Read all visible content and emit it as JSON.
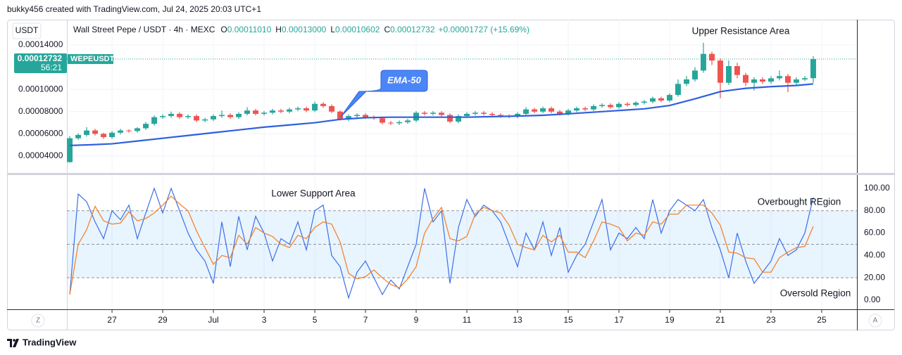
{
  "header": {
    "attribution": "bukky456 created with TradingView.com, Jul 24, 2025 20:03 UTC+1"
  },
  "footer": {
    "brand": "TradingView"
  },
  "scale_buttons": {
    "left": "Z",
    "right": "A"
  },
  "chart_data": [
    {
      "type": "candlestick",
      "currency": "USDT",
      "title": "Wall Street Pepe / USDT · 4h · MEXC",
      "ohlc_legend": [
        {
          "prefix": "O",
          "value": "0.00011010"
        },
        {
          "prefix": "H",
          "value": "0.00013000"
        },
        {
          "prefix": "L",
          "value": "0.00010602"
        },
        {
          "prefix": "C",
          "value": "0.00012732"
        }
      ],
      "change": "+0.00001727 (+15.69%)",
      "annotations": [
        "Upper Resistance Area"
      ],
      "last_price": {
        "value": 0.00012732,
        "label": "0.00012732",
        "symbol": "WEPEUSDT",
        "countdown": "56:21"
      },
      "colors": {
        "up": "#26a69a",
        "down": "#ef5350"
      },
      "grid": "both",
      "xlim": [
        25.22,
        56.39
      ],
      "ylim": [
        2.54e-05,
        0.0001628
      ],
      "yticks": [
        {
          "value": 4e-05,
          "label": "0.00004000"
        },
        {
          "value": 6e-05,
          "label": "0.00006000"
        },
        {
          "value": 8e-05,
          "label": "0.00008000"
        },
        {
          "value": 0.0001,
          "label": "0.00010000"
        },
        {
          "value": 0.00014,
          "label": "0.00014000"
        }
      ],
      "x": [
        25.333,
        25.667,
        26,
        26.333,
        26.667,
        27,
        27.333,
        27.667,
        28,
        28.333,
        28.667,
        29,
        29.333,
        29.667,
        30,
        30.333,
        30.667,
        31,
        31.333,
        31.667,
        32,
        32.333,
        32.667,
        33,
        33.333,
        33.667,
        34,
        34.333,
        34.667,
        35,
        35.333,
        35.667,
        36,
        36.333,
        36.667,
        37,
        37.333,
        37.667,
        38,
        38.333,
        38.667,
        39,
        39.333,
        39.667,
        40,
        40.333,
        40.667,
        41,
        41.333,
        41.667,
        42,
        42.333,
        42.667,
        43,
        43.333,
        43.667,
        44,
        44.333,
        44.667,
        45,
        45.333,
        45.667,
        46,
        46.333,
        46.667,
        47,
        47.333,
        47.667,
        48,
        48.333,
        48.667,
        49,
        49.333,
        49.667,
        50,
        50.333,
        50.667,
        51,
        51.333,
        51.667,
        52,
        52.333,
        52.667,
        53,
        53.333,
        53.667,
        54,
        54.333,
        54.667
      ],
      "open": [
        3.45e-05,
        5.6e-05,
        5.9e-05,
        6.3e-05,
        6e-05,
        5.7e-05,
        6.1e-05,
        6.3e-05,
        6.25e-05,
        6.5e-05,
        6.9e-05,
        7.5e-05,
        7.6e-05,
        7.8e-05,
        7.5e-05,
        7.6e-05,
        7.2e-05,
        7.3e-05,
        7.6e-05,
        7.7e-05,
        7.5e-05,
        7.8e-05,
        8.1e-05,
        7.8e-05,
        7.9e-05,
        8.1e-05,
        8e-05,
        8.2e-05,
        8.3e-05,
        8.1e-05,
        8.7e-05,
        8.5e-05,
        8e-05,
        7.3e-05,
        7.6e-05,
        7.7e-05,
        7.5e-05,
        7.4e-05,
        7e-05,
        6.95e-05,
        7.05e-05,
        7.2e-05,
        7.9e-05,
        7.8e-05,
        7.9e-05,
        7.7e-05,
        7.1e-05,
        7.6e-05,
        7.8e-05,
        7.9e-05,
        7.8e-05,
        7.7e-05,
        7.6e-05,
        7.55e-05,
        7.8e-05,
        8.2e-05,
        8e-05,
        8.3e-05,
        8e-05,
        7.8e-05,
        8.1e-05,
        8.3e-05,
        8.2e-05,
        8.5e-05,
        8.6e-05,
        8.4e-05,
        8.7e-05,
        8.6e-05,
        8.8e-05,
        8.9e-05,
        9.2e-05,
        9e-05,
        9.5e-05,
        0.000105,
        0.000109,
        0.000117,
        0.000132,
        0.000126,
        0.000106,
        0.000121,
        0.000113,
        0.000106,
        0.000109,
        0.000107,
        0.00011,
        0.000112,
        0.000106,
        0.000109,
        0.0001101
      ],
      "high": [
        5.8e-05,
        6.05e-05,
        6.6e-05,
        6.45e-05,
        6.1e-05,
        6.25e-05,
        6.45e-05,
        6.4e-05,
        6.6e-05,
        7.05e-05,
        7.65e-05,
        7.75e-05,
        8e-05,
        7.95e-05,
        7.75e-05,
        7.75e-05,
        7.45e-05,
        7.75e-05,
        8.1e-05,
        7.85e-05,
        7.95e-05,
        8.4e-05,
        8.25e-05,
        8.05e-05,
        8.25e-05,
        8.25e-05,
        8.35e-05,
        8.45e-05,
        8.45e-05,
        8.9e-05,
        8.85e-05,
        8.65e-05,
        8.1e-05,
        7.75e-05,
        7.85e-05,
        7.85e-05,
        7.65e-05,
        7.55e-05,
        7.15e-05,
        7.2e-05,
        7.35e-05,
        8.05e-05,
        8.05e-05,
        8.05e-05,
        8.05e-05,
        7.85e-05,
        7.75e-05,
        7.95e-05,
        8.05e-05,
        8.05e-05,
        7.95e-05,
        7.85e-05,
        7.75e-05,
        7.95e-05,
        8.4e-05,
        8.35e-05,
        8.45e-05,
        8.45e-05,
        8.15e-05,
        8.25e-05,
        8.45e-05,
        8.45e-05,
        8.65e-05,
        8.75e-05,
        8.75e-05,
        8.85e-05,
        8.85e-05,
        8.95e-05,
        9.05e-05,
        9.35e-05,
        9.35e-05,
        9.65e-05,
        0.000109,
        0.000112,
        0.00012,
        0.000142,
        0.000134,
        0.000128,
        0.000126,
        0.000124,
        0.000115,
        0.000111,
        0.000111,
        0.000112,
        0.000117,
        0.000114,
        0.000111,
        0.000112,
        0.00013
      ],
      "low": [
        3.4e-05,
        5.45e-05,
        5.75e-05,
        5.85e-05,
        5.55e-05,
        5.55e-05,
        5.95e-05,
        6.1e-05,
        6.1e-05,
        6.35e-05,
        6.75e-05,
        7.35e-05,
        7.45e-05,
        7.35e-05,
        7.35e-05,
        7.05e-05,
        7.05e-05,
        7.15e-05,
        7.45e-05,
        7.35e-05,
        7.35e-05,
        7.65e-05,
        7.65e-05,
        7.65e-05,
        7.75e-05,
        7.85e-05,
        7.85e-05,
        8.05e-05,
        7.95e-05,
        7.95e-05,
        8.35e-05,
        7.85e-05,
        7.2e-05,
        7.15e-05,
        7.45e-05,
        7.35e-05,
        7.25e-05,
        6.85e-05,
        6.8e-05,
        6.8e-05,
        6.9e-05,
        7.05e-05,
        7.65e-05,
        7.65e-05,
        7.55e-05,
        6.95e-05,
        6.95e-05,
        7.45e-05,
        7.65e-05,
        7.65e-05,
        7.55e-05,
        7.45e-05,
        7.4e-05,
        7.4e-05,
        7.65e-05,
        7.85e-05,
        7.85e-05,
        7.85e-05,
        7.65e-05,
        7.65e-05,
        7.95e-05,
        8.05e-05,
        8.05e-05,
        8.35e-05,
        8.25e-05,
        8.25e-05,
        8.45e-05,
        8.45e-05,
        8.65e-05,
        8.75e-05,
        8.85e-05,
        8.85e-05,
        9.35e-05,
        0.000103,
        0.000107,
        0.000115,
        0.000122,
        9.2e-05,
        0.000104,
        0.00011,
        0.000103,
        9.9e-05,
        0.000105,
        0.000105,
        0.000108,
        9.75e-05,
        0.000104,
        0.0001075,
        0.00010602
      ],
      "close": [
        5.6e-05,
        5.9e-05,
        6.3e-05,
        6e-05,
        5.7e-05,
        6.1e-05,
        6.3e-05,
        6.25e-05,
        6.5e-05,
        6.9e-05,
        7.5e-05,
        7.6e-05,
        7.8e-05,
        7.5e-05,
        7.6e-05,
        7.2e-05,
        7.3e-05,
        7.6e-05,
        7.7e-05,
        7.5e-05,
        7.8e-05,
        8.1e-05,
        7.8e-05,
        7.9e-05,
        8.1e-05,
        8e-05,
        8.2e-05,
        8.3e-05,
        8.1e-05,
        8.7e-05,
        8.5e-05,
        8e-05,
        7.3e-05,
        7.6e-05,
        7.7e-05,
        7.5e-05,
        7.4e-05,
        7e-05,
        6.95e-05,
        7.05e-05,
        7.2e-05,
        7.9e-05,
        7.8e-05,
        7.9e-05,
        7.7e-05,
        7.1e-05,
        7.6e-05,
        7.8e-05,
        7.9e-05,
        7.8e-05,
        7.7e-05,
        7.6e-05,
        7.55e-05,
        7.8e-05,
        8.2e-05,
        8e-05,
        8.3e-05,
        8e-05,
        7.8e-05,
        8.1e-05,
        8.3e-05,
        8.2e-05,
        8.5e-05,
        8.6e-05,
        8.4e-05,
        8.7e-05,
        8.6e-05,
        8.8e-05,
        8.9e-05,
        9.2e-05,
        9e-05,
        9.5e-05,
        0.000105,
        0.000109,
        0.000117,
        0.000132,
        0.000126,
        0.000106,
        0.000121,
        0.000113,
        0.000106,
        0.000109,
        0.000107,
        0.00011,
        0.000112,
        0.000106,
        0.000109,
        0.0001101,
        0.00012732
      ],
      "overlay": {
        "name": "EMA-50",
        "color": "#2f5fe0",
        "x": [
          25.333,
          26,
          27,
          28,
          29,
          30,
          31,
          32,
          33,
          34,
          35,
          36,
          37,
          38,
          39,
          40,
          41,
          42,
          43,
          44,
          45,
          46,
          47,
          48,
          49,
          50,
          51,
          52,
          53,
          54,
          54.667
        ],
        "values": [
          4.95e-05,
          5e-05,
          5.1e-05,
          5.35e-05,
          5.6e-05,
          5.85e-05,
          6.1e-05,
          6.35e-05,
          6.6e-05,
          6.8e-05,
          7e-05,
          7.3e-05,
          7.45e-05,
          7.5e-05,
          7.5e-05,
          7.5e-05,
          7.5e-05,
          7.55e-05,
          7.6e-05,
          7.67e-05,
          7.8e-05,
          7.95e-05,
          8.1e-05,
          8.25e-05,
          8.55e-05,
          9.15e-05,
          9.8e-05,
          0.000101,
          0.0001025,
          0.0001035,
          0.000105
        ]
      }
    },
    {
      "type": "line",
      "annotations": [
        "Lower Support Area",
        "Overbought REgion",
        "Oversold Region"
      ],
      "grid": "x",
      "xlim": [
        25.22,
        56.39
      ],
      "ylim": [
        -8.2,
        111.3
      ],
      "yticks": [
        {
          "value": 0,
          "label": "0.00"
        },
        {
          "value": 20,
          "label": "20.00"
        },
        {
          "value": 40,
          "label": "40.00"
        },
        {
          "value": 60,
          "label": "60.00"
        },
        {
          "value": 80,
          "label": "80.00"
        },
        {
          "value": 100,
          "label": "100.00"
        }
      ],
      "xticks": [
        27,
        29,
        {
          "value": 31,
          "label": "Jul"
        },
        {
          "value": 33,
          "label": "3"
        },
        {
          "value": 35,
          "label": "5"
        },
        {
          "value": 37,
          "label": "7"
        },
        {
          "value": 39,
          "label": "9"
        },
        {
          "value": 41,
          "label": "11"
        },
        {
          "value": 43,
          "label": "13"
        },
        {
          "value": 45,
          "label": "15"
        },
        {
          "value": 47,
          "label": "17"
        },
        {
          "value": 49,
          "label": "19"
        },
        {
          "value": 51,
          "label": "21"
        },
        {
          "value": 53,
          "label": "23"
        },
        {
          "value": 55,
          "label": "25"
        }
      ],
      "bands": {
        "upper": 80,
        "middle": 50,
        "lower": 20,
        "color": "#2196f3"
      },
      "x": [
        25.333,
        25.667,
        26,
        26.333,
        26.667,
        27,
        27.333,
        27.667,
        28,
        28.333,
        28.667,
        29,
        29.333,
        29.667,
        30,
        30.333,
        30.667,
        31,
        31.333,
        31.667,
        32,
        32.333,
        32.667,
        33,
        33.333,
        33.667,
        34,
        34.333,
        34.667,
        35,
        35.333,
        35.667,
        36,
        36.333,
        36.667,
        37,
        37.333,
        37.667,
        38,
        38.333,
        38.667,
        39,
        39.333,
        39.667,
        40,
        40.333,
        40.667,
        41,
        41.333,
        41.667,
        42,
        42.333,
        42.667,
        43,
        43.333,
        43.667,
        44,
        44.333,
        44.667,
        45,
        45.333,
        45.667,
        46,
        46.333,
        46.667,
        47,
        47.333,
        47.667,
        48,
        48.333,
        48.667,
        49,
        49.333,
        49.667,
        50,
        50.333,
        50.667,
        51,
        51.333,
        51.667,
        52,
        52.333,
        52.667,
        53,
        53.333,
        53.667,
        54,
        54.333,
        54.667
      ],
      "series": [
        {
          "color": "#3d6fe8",
          "values": [
            5,
            95,
            88,
            70,
            55,
            80,
            72,
            85,
            55,
            78,
            100,
            78,
            100,
            80,
            60,
            45,
            35,
            15,
            70,
            30,
            75,
            45,
            75,
            60,
            35,
            55,
            50,
            70,
            45,
            80,
            85,
            40,
            30,
            2,
            25,
            35,
            20,
            5,
            18,
            10,
            30,
            50,
            100,
            70,
            80,
            15,
            65,
            90,
            75,
            85,
            80,
            70,
            50,
            30,
            60,
            45,
            70,
            40,
            65,
            25,
            40,
            50,
            70,
            90,
            45,
            60,
            55,
            65,
            55,
            90,
            60,
            80,
            90,
            85,
            80,
            90,
            65,
            45,
            20,
            60,
            35,
            15,
            25,
            35,
            55,
            40,
            45,
            60,
            92
          ]
        },
        {
          "color": "#f57c22",
          "values": [
            5,
            50,
            63,
            84,
            71,
            68,
            69,
            79,
            71,
            73,
            78,
            85,
            93,
            86,
            80,
            62,
            47,
            32,
            40,
            38,
            58,
            50,
            65,
            60,
            57,
            50,
            47,
            58,
            55,
            65,
            70,
            68,
            52,
            24,
            19,
            21,
            27,
            20,
            14,
            11,
            19,
            30,
            60,
            73,
            83,
            55,
            53,
            57,
            77,
            83,
            80,
            78,
            67,
            50,
            47,
            45,
            58,
            52,
            58,
            43,
            43,
            38,
            53,
            70,
            68,
            65,
            53,
            60,
            58,
            70,
            68,
            77,
            77,
            85,
            85,
            85,
            78,
            67,
            43,
            42,
            38,
            37,
            25,
            25,
            38,
            43,
            47,
            48,
            66
          ]
        }
      ]
    }
  ]
}
